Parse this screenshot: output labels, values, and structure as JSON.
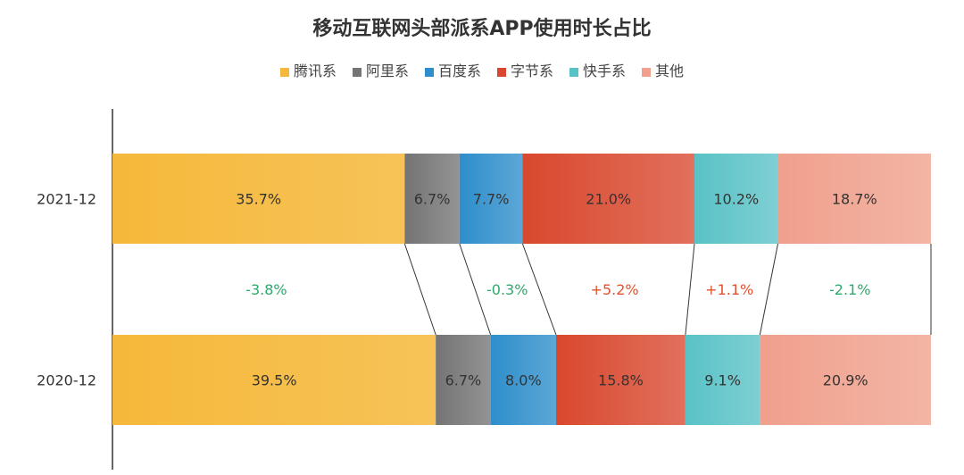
{
  "chart_data": {
    "type": "bar",
    "stacked": true,
    "orientation": "horizontal",
    "title": "移动互联网头部派系APP使用时长占比",
    "legend_position": "top",
    "categories": [
      "2021-12",
      "2020-12"
    ],
    "series": [
      {
        "name": "腾讯系",
        "color": "#f5b83a",
        "values": [
          35.7,
          39.5
        ],
        "labels": [
          "35.7%",
          "39.5%"
        ]
      },
      {
        "name": "阿里系",
        "color": "#747474",
        "values": [
          6.7,
          6.7
        ],
        "labels": [
          "6.7%",
          "6.7%"
        ]
      },
      {
        "name": "百度系",
        "color": "#2e8ecb",
        "values": [
          7.7,
          8.0
        ],
        "labels": [
          "7.7%",
          "8.0%"
        ]
      },
      {
        "name": "字节系",
        "color": "#d9482e",
        "values": [
          21.0,
          15.8
        ],
        "labels": [
          "21.0%",
          "15.8%"
        ]
      },
      {
        "name": "快手系",
        "color": "#59c2c6",
        "values": [
          10.2,
          9.1
        ],
        "labels": [
          "10.2%",
          "9.1%"
        ]
      },
      {
        "name": "其他",
        "color": "#f0a08c",
        "values": [
          18.7,
          20.9
        ],
        "labels": [
          "18.7%",
          "20.9%"
        ]
      }
    ],
    "changes": [
      "-3.8%",
      "",
      "-0.3%",
      "+5.2%",
      "+1.1%",
      "-2.1%"
    ],
    "xlim": [
      0,
      100
    ],
    "grid": false,
    "colors": {
      "positive": "#e0522f",
      "negative": "#2ea86c",
      "axis": "#333333",
      "connector": "#333333"
    }
  }
}
